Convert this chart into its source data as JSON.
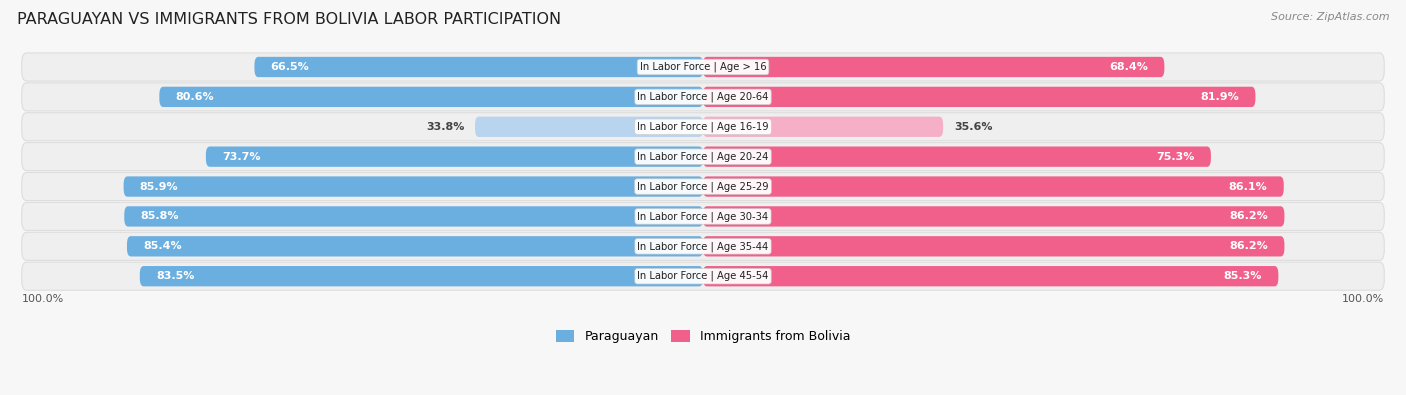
{
  "title": "PARAGUAYAN VS IMMIGRANTS FROM BOLIVIA LABOR PARTICIPATION",
  "source": "Source: ZipAtlas.com",
  "categories": [
    "In Labor Force | Age > 16",
    "In Labor Force | Age 20-64",
    "In Labor Force | Age 16-19",
    "In Labor Force | Age 20-24",
    "In Labor Force | Age 25-29",
    "In Labor Force | Age 30-34",
    "In Labor Force | Age 35-44",
    "In Labor Force | Age 45-54"
  ],
  "paraguayan": [
    66.5,
    80.6,
    33.8,
    73.7,
    85.9,
    85.8,
    85.4,
    83.5
  ],
  "bolivia": [
    68.4,
    81.9,
    35.6,
    75.3,
    86.1,
    86.2,
    86.2,
    85.3
  ],
  "paraguayan_color": "#6aafe0",
  "paraguayan_color_light": "#b8d4ee",
  "bolivia_color": "#f0608a",
  "bolivia_color_light": "#f5b0c8",
  "row_bg_color": "#efefef",
  "row_border_color": "#dddddd",
  "fig_bg_color": "#f7f7f7",
  "max_value": 100.0,
  "figsize": [
    14.06,
    3.95
  ],
  "dpi": 100
}
